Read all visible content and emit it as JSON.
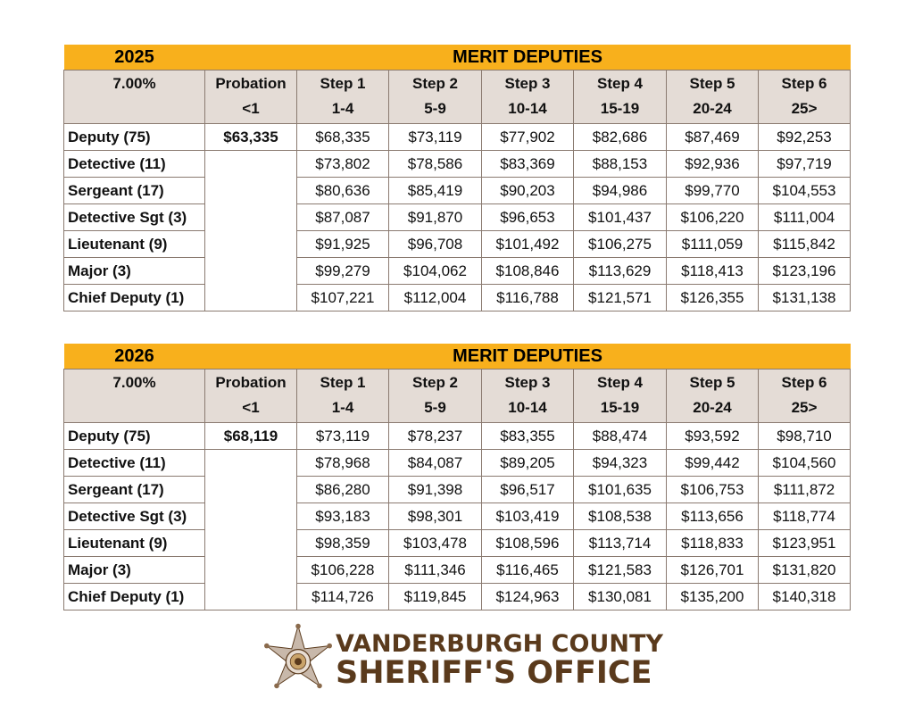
{
  "tables": [
    {
      "year": "2025",
      "title": "MERIT DEPUTIES",
      "rate": "7.00%",
      "headers": [
        {
          "top": "Probation",
          "bottom": "<1"
        },
        {
          "top": "Step 1",
          "bottom": "1-4"
        },
        {
          "top": "Step 2",
          "bottom": "5-9"
        },
        {
          "top": "Step 3",
          "bottom": "10-14"
        },
        {
          "top": "Step 4",
          "bottom": "15-19"
        },
        {
          "top": "Step 5",
          "bottom": "20-24"
        },
        {
          "top": "Step 6",
          "bottom": "25>"
        }
      ],
      "rows": [
        {
          "rank": "Deputy (75)",
          "probation": "$63,335",
          "steps": [
            "$68,335",
            "$73,119",
            "$77,902",
            "$82,686",
            "$87,469",
            "$92,253"
          ]
        },
        {
          "rank": "Detective (11)",
          "probation": "",
          "steps": [
            "$73,802",
            "$78,586",
            "$83,369",
            "$88,153",
            "$92,936",
            "$97,719"
          ]
        },
        {
          "rank": "Sergeant (17)",
          "probation": "",
          "steps": [
            "$80,636",
            "$85,419",
            "$90,203",
            "$94,986",
            "$99,770",
            "$104,553"
          ]
        },
        {
          "rank": "Detective Sgt (3)",
          "probation": "",
          "steps": [
            "$87,087",
            "$91,870",
            "$96,653",
            "$101,437",
            "$106,220",
            "$111,004"
          ]
        },
        {
          "rank": "Lieutenant (9)",
          "probation": "",
          "steps": [
            "$91,925",
            "$96,708",
            "$101,492",
            "$106,275",
            "$111,059",
            "$115,842"
          ]
        },
        {
          "rank": "Major (3)",
          "probation": "",
          "steps": [
            "$99,279",
            "$104,062",
            "$108,846",
            "$113,629",
            "$118,413",
            "$123,196"
          ]
        },
        {
          "rank": "Chief Deputy (1)",
          "probation": "",
          "steps": [
            "$107,221",
            "$112,004",
            "$116,788",
            "$121,571",
            "$126,355",
            "$131,138"
          ]
        }
      ]
    },
    {
      "year": "2026",
      "title": "MERIT DEPUTIES",
      "rate": "7.00%",
      "headers": [
        {
          "top": "Probation",
          "bottom": "<1"
        },
        {
          "top": "Step 1",
          "bottom": "1-4"
        },
        {
          "top": "Step 2",
          "bottom": "5-9"
        },
        {
          "top": "Step 3",
          "bottom": "10-14"
        },
        {
          "top": "Step 4",
          "bottom": "15-19"
        },
        {
          "top": "Step 5",
          "bottom": "20-24"
        },
        {
          "top": "Step 6",
          "bottom": "25>"
        }
      ],
      "rows": [
        {
          "rank": "Deputy (75)",
          "probation": "$68,119",
          "steps": [
            "$73,119",
            "$78,237",
            "$83,355",
            "$88,474",
            "$93,592",
            "$98,710"
          ]
        },
        {
          "rank": "Detective (11)",
          "probation": "",
          "steps": [
            "$78,968",
            "$84,087",
            "$89,205",
            "$94,323",
            "$99,442",
            "$104,560"
          ]
        },
        {
          "rank": "Sergeant (17)",
          "probation": "",
          "steps": [
            "$86,280",
            "$91,398",
            "$96,517",
            "$101,635",
            "$106,753",
            "$111,872"
          ]
        },
        {
          "rank": "Detective Sgt (3)",
          "probation": "",
          "steps": [
            "$93,183",
            "$98,301",
            "$103,419",
            "$108,538",
            "$113,656",
            "$118,774"
          ]
        },
        {
          "rank": "Lieutenant (9)",
          "probation": "",
          "steps": [
            "$98,359",
            "$103,478",
            "$108,596",
            "$113,714",
            "$118,833",
            "$123,951"
          ]
        },
        {
          "rank": "Major (3)",
          "probation": "",
          "steps": [
            "$106,228",
            "$111,346",
            "$116,465",
            "$121,583",
            "$126,701",
            "$131,820"
          ]
        },
        {
          "rank": "Chief Deputy (1)",
          "probation": "",
          "steps": [
            "$114,726",
            "$119,845",
            "$124,963",
            "$130,081",
            "$135,200",
            "$140,318"
          ]
        }
      ]
    }
  ],
  "logo": {
    "line1": "VANDERBURGH COUNTY",
    "line2": "SHERIFF'S OFFICE",
    "icon": "sheriff-star-badge-icon",
    "color": "#5a3a1c"
  },
  "colors": {
    "title_bar": "#f8b01c",
    "header_bg": "#e4dcd6",
    "border": "#8a7a70"
  }
}
